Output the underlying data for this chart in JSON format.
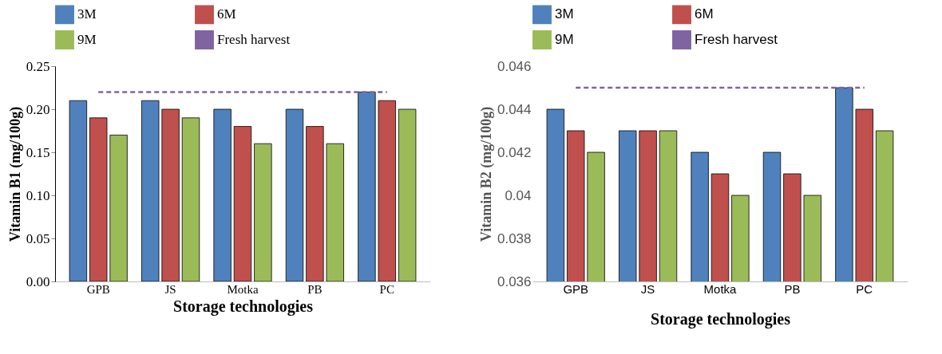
{
  "chart_data": [
    {
      "type": "bar",
      "xlabel": "Storage technologies",
      "ylabel": "Vitamin B1 (mg/100g)",
      "categories": [
        "GPB",
        "JS",
        "Motka",
        "PB",
        "PC"
      ],
      "ylim": [
        0,
        0.25
      ],
      "yticks": [
        {
          "value": 0,
          "label": "0.00"
        },
        0.05,
        {
          "value": 0.1,
          "label": "0.10"
        },
        0.15,
        {
          "value": 0.2,
          "label": "0.20"
        },
        0.25
      ],
      "legend": "top",
      "series": [
        {
          "name": "3M",
          "color": "#4f81bd",
          "values": [
            0.21,
            0.21,
            0.2,
            0.2,
            0.22
          ]
        },
        {
          "name": "6M",
          "color": "#c0504d",
          "values": [
            0.19,
            0.2,
            0.18,
            0.18,
            0.21
          ]
        },
        {
          "name": "9M",
          "color": "#9bbb59",
          "values": [
            0.17,
            0.19,
            0.16,
            0.16,
            0.2
          ]
        },
        {
          "name": "Fresh harvest",
          "type": "line",
          "line_style": "dashed",
          "color": "#8064a2",
          "values": [
            0.22,
            0.22,
            0.22,
            0.22,
            0.22
          ]
        }
      ]
    },
    {
      "type": "bar",
      "xlabel": "Storage technologies",
      "ylabel": "Vitamin B2 (mg/100g)",
      "categories": [
        "GPB",
        "JS",
        "Motka",
        "PB",
        "PC"
      ],
      "ylim": [
        0.036,
        0.046
      ],
      "yticks": [
        0.036,
        0.038,
        0.04,
        0.042,
        0.044,
        0.046
      ],
      "legend": "top",
      "series": [
        {
          "name": "3M",
          "color": "#4f81bd",
          "values": [
            0.044,
            0.043,
            0.042,
            0.042,
            0.045
          ]
        },
        {
          "name": "6M",
          "color": "#c0504d",
          "values": [
            0.043,
            0.043,
            0.041,
            0.041,
            0.044
          ]
        },
        {
          "name": "9M",
          "color": "#9bbb59",
          "values": [
            0.042,
            0.043,
            0.04,
            0.04,
            0.043
          ]
        },
        {
          "name": "Fresh harvest",
          "type": "line",
          "line_style": "dashed",
          "color": "#8064a2",
          "values": [
            0.045,
            0.045,
            0.045,
            0.045,
            0.045
          ]
        }
      ]
    }
  ]
}
